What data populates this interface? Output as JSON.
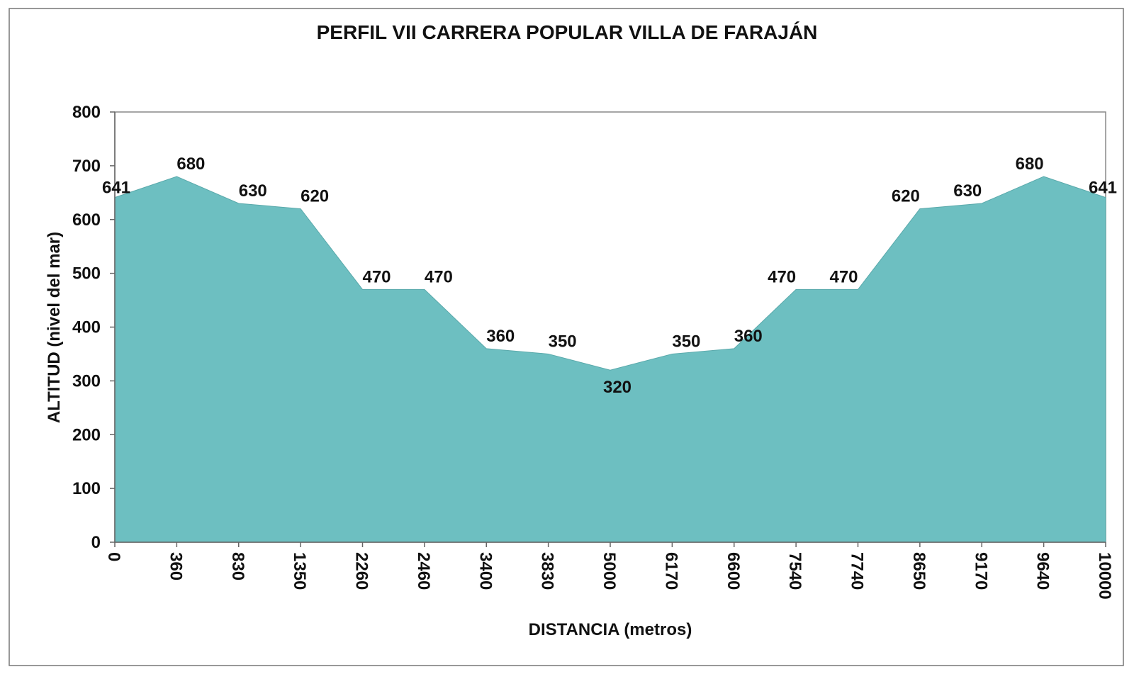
{
  "chart_data": {
    "type": "area",
    "title": "PERFIL VII CARRERA POPULAR VILLA DE FARAJÁN",
    "xlabel": "DISTANCIA (metros)",
    "ylabel": "ALTITUD (nivel del mar)",
    "categories": [
      "0",
      "360",
      "830",
      "1350",
      "2260",
      "2460",
      "3400",
      "3830",
      "5000",
      "6170",
      "6600",
      "7540",
      "7740",
      "8650",
      "9170",
      "9640",
      "10000"
    ],
    "values": [
      641,
      680,
      630,
      620,
      470,
      470,
      360,
      350,
      320,
      350,
      360,
      470,
      470,
      620,
      630,
      680,
      641
    ],
    "ylim": [
      0,
      800
    ],
    "yticks": [
      "0",
      "100",
      "200",
      "300",
      "400",
      "500",
      "600",
      "700",
      "800"
    ],
    "grid": false,
    "legend": "none",
    "fill_color": "#6dbfc1",
    "data_labels": true
  }
}
